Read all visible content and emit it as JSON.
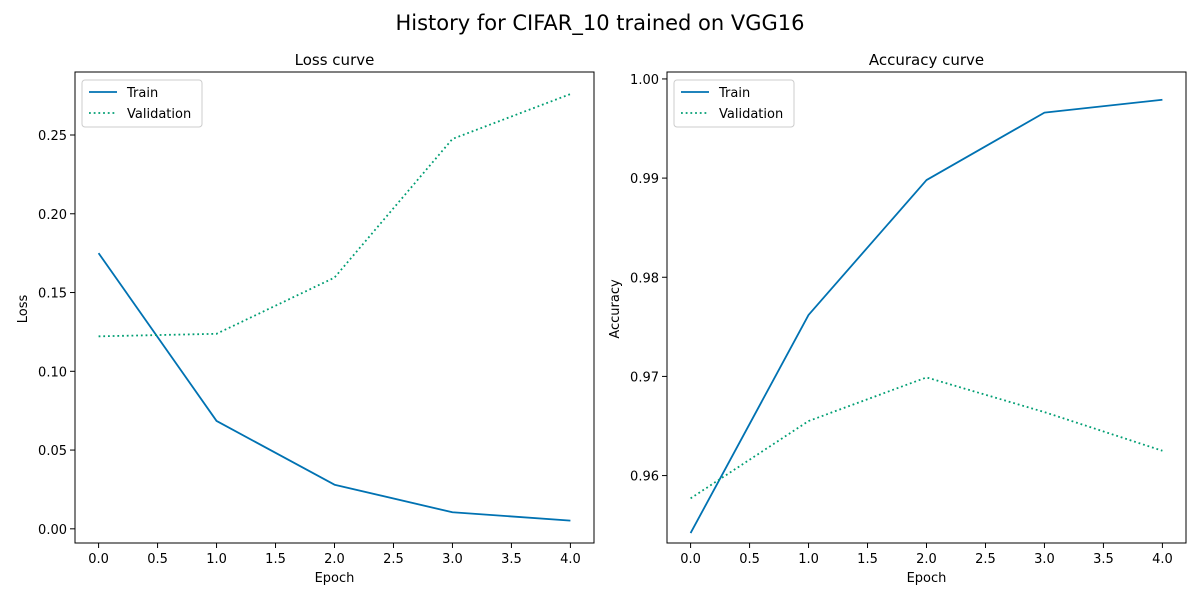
{
  "figure": {
    "title": "History for CIFAR_10 trained on VGG16"
  },
  "colors": {
    "train": "#0072b2",
    "validation": "#009e73",
    "axes": "#000000",
    "legend_border": "#cccccc",
    "background": "#ffffff"
  },
  "chart_data": [
    {
      "type": "line",
      "title": "Loss curve",
      "xlabel": "Epoch",
      "ylabel": "Loss",
      "x": [
        0,
        1,
        2,
        3,
        4
      ],
      "xlim": [
        -0.2,
        4.2
      ],
      "ylim": [
        -0.009,
        0.29
      ],
      "xticks": [
        0.0,
        0.5,
        1.0,
        1.5,
        2.0,
        2.5,
        3.0,
        3.5,
        4.0
      ],
      "xtick_labels": [
        "0.0",
        "0.5",
        "1.0",
        "1.5",
        "2.0",
        "2.5",
        "3.0",
        "3.5",
        "4.0"
      ],
      "yticks": [
        0.0,
        0.05,
        0.1,
        0.15,
        0.2,
        0.25
      ],
      "ytick_labels": [
        "0.00",
        "0.05",
        "0.10",
        "0.15",
        "0.20",
        "0.25"
      ],
      "grid": false,
      "legend_position": "upper-left",
      "series": [
        {
          "name": "Train",
          "style": "solid",
          "color_key": "train",
          "values": [
            0.175,
            0.0685,
            0.028,
            0.0105,
            0.0052
          ]
        },
        {
          "name": "Validation",
          "style": "dotted",
          "color_key": "validation",
          "values": [
            0.1222,
            0.1238,
            0.1595,
            0.2475,
            0.276
          ]
        }
      ]
    },
    {
      "type": "line",
      "title": "Accuracy curve",
      "xlabel": "Epoch",
      "ylabel": "Accuracy",
      "x": [
        0,
        1,
        2,
        3,
        4
      ],
      "xlim": [
        -0.2,
        4.2
      ],
      "ylim": [
        0.9532,
        1.0007
      ],
      "xticks": [
        0.0,
        0.5,
        1.0,
        1.5,
        2.0,
        2.5,
        3.0,
        3.5,
        4.0
      ],
      "xtick_labels": [
        "0.0",
        "0.5",
        "1.0",
        "1.5",
        "2.0",
        "2.5",
        "3.0",
        "3.5",
        "4.0"
      ],
      "yticks": [
        0.96,
        0.97,
        0.98,
        0.99,
        1.0
      ],
      "ytick_labels": [
        "0.96",
        "0.97",
        "0.98",
        "0.99",
        "1.00"
      ],
      "grid": false,
      "legend_position": "upper-left",
      "series": [
        {
          "name": "Train",
          "style": "solid",
          "color_key": "train",
          "values": [
            0.9542,
            0.9762,
            0.9898,
            0.9966,
            0.9979
          ]
        },
        {
          "name": "Validation",
          "style": "dotted",
          "color_key": "validation",
          "values": [
            0.9577,
            0.9655,
            0.9699,
            0.9664,
            0.9625
          ]
        }
      ]
    }
  ]
}
